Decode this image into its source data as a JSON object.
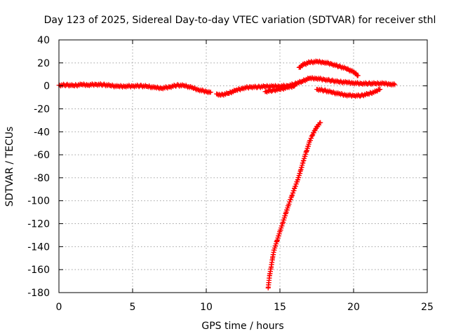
{
  "chart_data": {
    "type": "scatter",
    "title": "Day 123 of 2025, Sidereal Day-to-day VTEC variation (SDTVAR) for receiver sthl",
    "xlabel": "GPS time / hours",
    "ylabel": "SDTVAR / TECUs",
    "xlim": [
      0,
      25
    ],
    "ylim": [
      -180,
      40
    ],
    "xticks": [
      0,
      5,
      10,
      15,
      20,
      25
    ],
    "yticks": [
      40,
      20,
      0,
      -20,
      -40,
      -60,
      -80,
      -100,
      -120,
      -140,
      -160,
      -180
    ],
    "grid": true,
    "marker": "plus",
    "color": "#ff0000",
    "series": [
      {
        "points": [
          [
            0.0,
            0.5
          ],
          [
            0.5,
            0.8
          ],
          [
            1.0,
            0.2
          ],
          [
            1.5,
            1.0
          ],
          [
            2.0,
            0.8
          ],
          [
            2.5,
            1.2
          ],
          [
            3.0,
            1.0
          ],
          [
            3.5,
            0.2
          ],
          [
            4.0,
            -0.5
          ],
          [
            4.5,
            -0.3
          ],
          [
            5.0,
            -0.2
          ],
          [
            5.5,
            0.0
          ],
          [
            6.0,
            -0.5
          ],
          [
            6.5,
            -1.5
          ],
          [
            7.0,
            -2.0
          ],
          [
            7.5,
            -1.0
          ],
          [
            8.0,
            0.5
          ],
          [
            8.5,
            0.2
          ],
          [
            9.0,
            -1.5
          ],
          [
            9.5,
            -3.5
          ],
          [
            10.0,
            -5.0
          ],
          [
            10.3,
            -5.5
          ]
        ]
      },
      {
        "points": [
          [
            10.7,
            -7.0
          ],
          [
            11.0,
            -8.0
          ],
          [
            11.5,
            -6.5
          ],
          [
            12.0,
            -4.0
          ],
          [
            12.5,
            -2.0
          ],
          [
            13.0,
            -1.0
          ],
          [
            13.5,
            -1.0
          ],
          [
            14.0,
            -0.5
          ],
          [
            14.5,
            -0.5
          ],
          [
            15.0,
            -0.3
          ],
          [
            15.5,
            0.0
          ],
          [
            16.0,
            1.5
          ],
          [
            16.5,
            4.0
          ],
          [
            17.0,
            6.5
          ],
          [
            17.5,
            6.5
          ],
          [
            18.0,
            5.5
          ],
          [
            18.5,
            4.5
          ],
          [
            19.0,
            3.5
          ],
          [
            19.5,
            3.0
          ],
          [
            20.0,
            2.5
          ],
          [
            20.5,
            2.0
          ],
          [
            21.0,
            2.0
          ],
          [
            21.5,
            2.0
          ],
          [
            22.0,
            2.0
          ],
          [
            22.5,
            1.5
          ],
          [
            22.8,
            1.0
          ]
        ]
      },
      {
        "points": [
          [
            14.0,
            -5.0
          ],
          [
            14.5,
            -4.0
          ],
          [
            15.0,
            -3.0
          ],
          [
            15.5,
            -1.5
          ],
          [
            16.0,
            0.0
          ]
        ]
      },
      {
        "points": [
          [
            16.3,
            16.0
          ],
          [
            16.6,
            18.5
          ],
          [
            17.0,
            20.5
          ],
          [
            17.5,
            21.0
          ],
          [
            18.0,
            20.5
          ],
          [
            18.5,
            19.0
          ],
          [
            19.0,
            17.0
          ],
          [
            19.5,
            15.0
          ],
          [
            20.0,
            12.0
          ],
          [
            20.3,
            9.0
          ]
        ]
      },
      {
        "points": [
          [
            17.5,
            -3.0
          ],
          [
            18.0,
            -4.0
          ],
          [
            18.5,
            -5.5
          ],
          [
            19.0,
            -7.0
          ],
          [
            19.5,
            -8.0
          ],
          [
            20.0,
            -8.5
          ],
          [
            20.5,
            -8.5
          ],
          [
            21.0,
            -7.0
          ],
          [
            21.5,
            -5.0
          ],
          [
            21.8,
            -3.0
          ]
        ]
      },
      {
        "points": [
          [
            14.2,
            -176.0
          ],
          [
            14.3,
            -165.0
          ],
          [
            14.4,
            -158.0
          ],
          [
            14.5,
            -150.0
          ],
          [
            14.6,
            -143.0
          ],
          [
            14.8,
            -135.0
          ],
          [
            15.0,
            -127.0
          ],
          [
            15.2,
            -119.0
          ],
          [
            15.4,
            -111.0
          ],
          [
            15.6,
            -103.0
          ],
          [
            15.8,
            -96.0
          ],
          [
            16.0,
            -89.0
          ],
          [
            16.2,
            -82.0
          ],
          [
            16.4,
            -74.0
          ],
          [
            16.6,
            -65.0
          ],
          [
            16.8,
            -57.0
          ],
          [
            17.0,
            -49.0
          ],
          [
            17.2,
            -43.0
          ],
          [
            17.4,
            -38.0
          ],
          [
            17.6,
            -34.0
          ],
          [
            17.75,
            -32.0
          ]
        ]
      }
    ]
  }
}
